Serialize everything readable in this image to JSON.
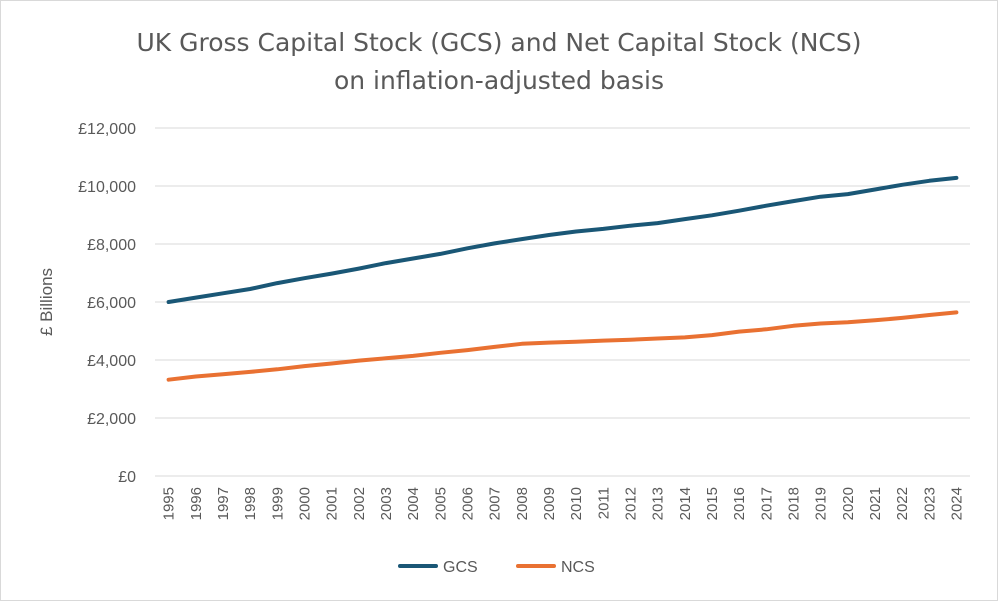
{
  "chart_data": {
    "type": "line",
    "title_line1": "UK Gross Capital Stock (GCS) and Net Capital Stock (NCS)",
    "title_line2": "on inflation-adjusted basis",
    "ylabel": "£ Billions",
    "xlabel": "",
    "ylim": [
      0,
      12000
    ],
    "yticks": [
      0,
      2000,
      4000,
      6000,
      8000,
      10000,
      12000
    ],
    "ytick_labels": [
      "£0",
      "£2,000",
      "£4,000",
      "£6,000",
      "£8,000",
      "£10,000",
      "£12,000"
    ],
    "grid": true,
    "legend_position": "bottom",
    "x": [
      "1995",
      "1996",
      "1997",
      "1998",
      "1999",
      "2000",
      "2001",
      "2002",
      "2003",
      "2004",
      "2005",
      "2006",
      "2007",
      "2008",
      "2009",
      "2010",
      "2011",
      "2012",
      "2013",
      "2014",
      "2015",
      "2016",
      "2017",
      "2018",
      "2019",
      "2020",
      "2021",
      "2022",
      "2023",
      "2024"
    ],
    "series": [
      {
        "name": "GCS",
        "color": "#1a5776",
        "values": [
          6000,
          6150,
          6300,
          6450,
          6650,
          6820,
          6980,
          7150,
          7340,
          7500,
          7660,
          7850,
          8020,
          8170,
          8310,
          8430,
          8520,
          8630,
          8720,
          8860,
          8990,
          9150,
          9320,
          9480,
          9630,
          9720,
          9880,
          10040,
          10180,
          10280
        ]
      },
      {
        "name": "NCS",
        "color": "#e97132",
        "values": [
          3320,
          3430,
          3510,
          3590,
          3680,
          3790,
          3880,
          3980,
          4060,
          4140,
          4250,
          4340,
          4450,
          4560,
          4600,
          4630,
          4670,
          4700,
          4740,
          4780,
          4860,
          4980,
          5060,
          5180,
          5260,
          5300,
          5370,
          5450,
          5550,
          5640
        ]
      }
    ]
  }
}
